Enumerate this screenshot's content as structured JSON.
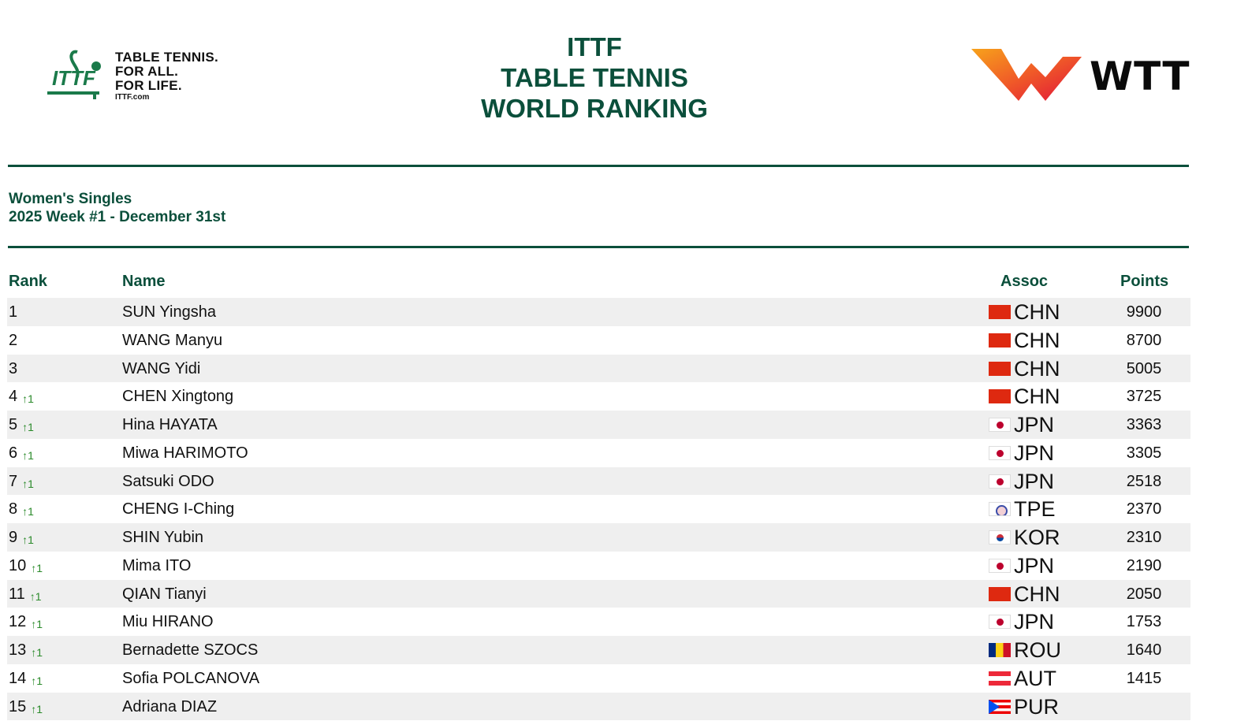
{
  "header": {
    "ittf_tagline": [
      "TABLE TENNIS.",
      "FOR ALL.",
      "FOR LIFE."
    ],
    "ittf_url": "ITTF.com",
    "title_lines": [
      "ITTF",
      "TABLE TENNIS",
      "WORLD RANKING"
    ],
    "wtt_wordmark": "WTT"
  },
  "subtitle": {
    "event": "Women's Singles",
    "week": "2025 Week #1 - December 31st"
  },
  "table": {
    "columns": {
      "rank": "Rank",
      "name": "Name",
      "assoc": "Assoc",
      "points": "Points"
    },
    "rows": [
      {
        "rank": "1",
        "change": "",
        "name": "SUN Yingsha",
        "flag": "chn",
        "assoc": "CHN",
        "points": "9900"
      },
      {
        "rank": "2",
        "change": "",
        "name": "WANG Manyu",
        "flag": "chn",
        "assoc": "CHN",
        "points": "8700"
      },
      {
        "rank": "3",
        "change": "",
        "name": "WANG Yidi",
        "flag": "chn",
        "assoc": "CHN",
        "points": "5005"
      },
      {
        "rank": "4",
        "change": "↑1",
        "name": "CHEN Xingtong",
        "flag": "chn",
        "assoc": "CHN",
        "points": "3725"
      },
      {
        "rank": "5",
        "change": "↑1",
        "name": "Hina HAYATA",
        "flag": "jpn",
        "assoc": "JPN",
        "points": "3363"
      },
      {
        "rank": "6",
        "change": "↑1",
        "name": "Miwa HARIMOTO",
        "flag": "jpn",
        "assoc": "JPN",
        "points": "3305"
      },
      {
        "rank": "7",
        "change": "↑1",
        "name": "Satsuki ODO",
        "flag": "jpn",
        "assoc": "JPN",
        "points": "2518"
      },
      {
        "rank": "8",
        "change": "↑1",
        "name": "CHENG I-Ching",
        "flag": "tpe",
        "assoc": "TPE",
        "points": "2370"
      },
      {
        "rank": "9",
        "change": "↑1",
        "name": "SHIN Yubin",
        "flag": "kor",
        "assoc": "KOR",
        "points": "2310"
      },
      {
        "rank": "10",
        "change": "↑1",
        "name": "Mima ITO",
        "flag": "jpn",
        "assoc": "JPN",
        "points": "2190"
      },
      {
        "rank": "11",
        "change": "↑1",
        "name": "QIAN Tianyi",
        "flag": "chn",
        "assoc": "CHN",
        "points": "2050"
      },
      {
        "rank": "12",
        "change": "↑1",
        "name": "Miu HIRANO",
        "flag": "jpn",
        "assoc": "JPN",
        "points": "1753"
      },
      {
        "rank": "13",
        "change": "↑1",
        "name": "Bernadette SZOCS",
        "flag": "rou",
        "assoc": "ROU",
        "points": "1640"
      },
      {
        "rank": "14",
        "change": "↑1",
        "name": "Sofia POLCANOVA",
        "flag": "aut",
        "assoc": "AUT",
        "points": "1415"
      },
      {
        "rank": "15",
        "change": "↑1",
        "name": "Adriana DIAZ",
        "flag": "pur",
        "assoc": "PUR",
        "points": ""
      }
    ]
  },
  "colors": {
    "brand_green": "#0b4f3b",
    "row_shade": "#efefef",
    "rank_up": "#2a8a2a",
    "wtt_orange": "#f04a23"
  }
}
